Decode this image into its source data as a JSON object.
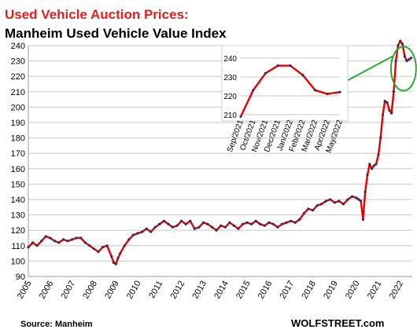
{
  "title": "Used Vehicle Auction Prices:",
  "subtitle": "Manheim  Used Vehicle Value Index",
  "source": "Source: Manheim",
  "brand": "WOLFSTREET.com",
  "colors": {
    "title": "#e32020",
    "line": "#e60000",
    "marker": "#3a2a5a",
    "highlight": "#2ea82e",
    "grid": "#c8c8c8"
  },
  "chart_data": [
    {
      "type": "line",
      "title": "Manheim  Used Vehicle Value Index",
      "xlabel": "",
      "ylabel": "",
      "ylim": [
        90,
        240
      ],
      "yticks": [
        90,
        100,
        110,
        120,
        130,
        140,
        150,
        160,
        170,
        180,
        190,
        200,
        210,
        220,
        230,
        240
      ],
      "xlim": [
        2005,
        2022.55
      ],
      "xticks": [
        "2005",
        "2006",
        "2007",
        "2008",
        "2009",
        "2010",
        "2011",
        "2012",
        "2013",
        "2014",
        "2015",
        "2016",
        "2017",
        "2018",
        "2019",
        "2020",
        "2021",
        "2022"
      ],
      "grid": "horizontal",
      "annotation": "green ellipse around 2021-2022 peak linked to inset",
      "series": [
        {
          "x": [
            2005.0,
            2005.2,
            2005.4,
            2005.6,
            2005.8,
            2006.0,
            2006.2,
            2006.4,
            2006.6,
            2006.8,
            2007.0,
            2007.2,
            2007.4,
            2007.6,
            2007.8,
            2008.0,
            2008.2,
            2008.4,
            2008.6,
            2008.8,
            2008.9,
            2009.0,
            2009.1,
            2009.2,
            2009.4,
            2009.6,
            2009.8,
            2010.0,
            2010.2,
            2010.4,
            2010.6,
            2010.8,
            2011.0,
            2011.2,
            2011.4,
            2011.6,
            2011.8,
            2012.0,
            2012.2,
            2012.4,
            2012.6,
            2012.8,
            2013.0,
            2013.2,
            2013.4,
            2013.6,
            2013.8,
            2014.0,
            2014.2,
            2014.4,
            2014.6,
            2014.8,
            2015.0,
            2015.2,
            2015.4,
            2015.6,
            2015.8,
            2016.0,
            2016.2,
            2016.4,
            2016.6,
            2016.8,
            2017.0,
            2017.2,
            2017.4,
            2017.6,
            2017.8,
            2018.0,
            2018.2,
            2018.4,
            2018.6,
            2018.8,
            2019.0,
            2019.2,
            2019.4,
            2019.6,
            2019.8,
            2020.0,
            2020.1,
            2020.2,
            2020.3,
            2020.4,
            2020.5,
            2020.6,
            2020.7,
            2020.8,
            2020.9,
            2021.0,
            2021.1,
            2021.2,
            2021.3,
            2021.4,
            2021.5,
            2021.6,
            2021.7,
            2021.8,
            2021.9,
            2022.0,
            2022.1,
            2022.2,
            2022.3,
            2022.4,
            2022.5
          ],
          "y": [
            109,
            112,
            110,
            113,
            116,
            115,
            113,
            112,
            114,
            113,
            114,
            115,
            115,
            112,
            110,
            108,
            106,
            109,
            110,
            103,
            99,
            98,
            102,
            105,
            110,
            114,
            117,
            118,
            119,
            121,
            119,
            122,
            124,
            126,
            124,
            122,
            123,
            126,
            124,
            126,
            121,
            122,
            125,
            124,
            122,
            120,
            123,
            122,
            125,
            123,
            121,
            124,
            125,
            124,
            126,
            124,
            123,
            125,
            124,
            122,
            124,
            125,
            126,
            125,
            127,
            131,
            134,
            133,
            136,
            137,
            139,
            140,
            138,
            139,
            137,
            140,
            142,
            141,
            140,
            139,
            127,
            145,
            156,
            163,
            160,
            162,
            163,
            169,
            180,
            195,
            204,
            203,
            198,
            196,
            210,
            230,
            240,
            243,
            241,
            233,
            230,
            231,
            232
          ]
        }
      ]
    },
    {
      "type": "line",
      "title": "",
      "xlabel": "",
      "ylabel": "",
      "ylim": [
        210,
        240
      ],
      "yticks": [
        210,
        220,
        230,
        240
      ],
      "categories": [
        "Sep/2021",
        "Oct/2021",
        "Nov/2021",
        "Dec/2021",
        "Jan/2022",
        "Feb/2022",
        "Mar/2022",
        "Apr/2022",
        "May/2022"
      ],
      "grid": "horizontal",
      "series": [
        {
          "values": [
            209,
            223,
            232,
            236,
            236,
            231,
            223,
            221,
            222
          ]
        }
      ]
    }
  ]
}
